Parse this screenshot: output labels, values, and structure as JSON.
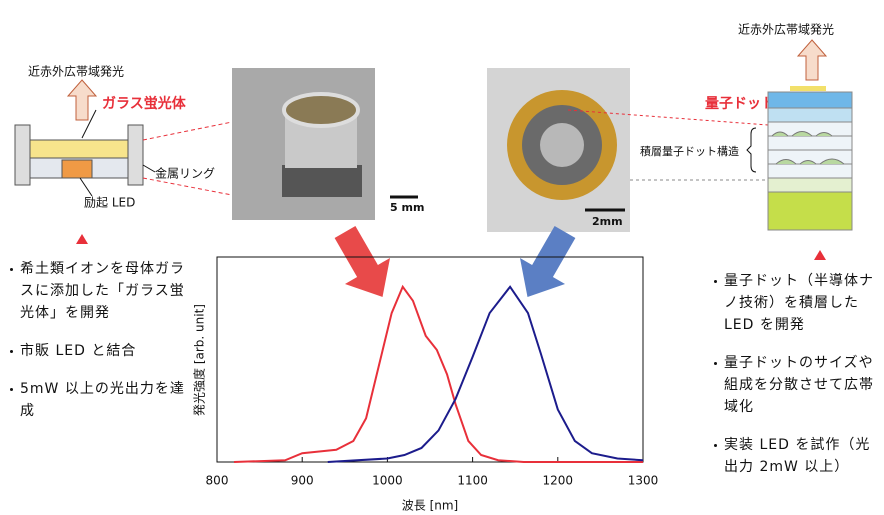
{
  "left_diagram": {
    "emission": "近赤外広帯域発光",
    "phosphor": "ガラス蛍光体",
    "ring": "金属リング",
    "led": "励起 LED"
  },
  "left_photo": {
    "scale": "5 mm"
  },
  "right_photo": {
    "scale": "2mm"
  },
  "right_diagram": {
    "emission": "近赤外広帯域発光",
    "dots": "量子ドット",
    "structure": "積層量子ドット構造"
  },
  "left_notes": [
    "希土類イオンを母体ガラスに添加した「ガラス蛍光体」を開発",
    "市販 LED と結合",
    "5mW 以上の光出力を達成"
  ],
  "right_notes": [
    "量子ドット（半導体ナノ技術）を積層した LED を開発",
    "量子ドットのサイズや組成を分散させて広帯域化",
    "実装 LED を試作（光出力 2mW 以上）"
  ],
  "chart_data": {
    "type": "line",
    "xlabel": "波長 [nm]",
    "ylabel": "発光強度 [arb. unit]",
    "xlim": [
      800,
      1300
    ],
    "xticks": [
      800,
      900,
      1000,
      1100,
      1200,
      1300
    ],
    "ylim": [
      0,
      1.17
    ],
    "series": [
      {
        "color": "#e8303a",
        "x": [
          820,
          880,
          900,
          920,
          940,
          960,
          975,
          990,
          1005,
          1018,
          1030,
          1045,
          1058,
          1070,
          1080,
          1095,
          1110,
          1130,
          1160,
          1300
        ],
        "values": [
          0,
          0.01,
          0.05,
          0.06,
          0.07,
          0.12,
          0.25,
          0.55,
          0.85,
          1.0,
          0.92,
          0.72,
          0.64,
          0.5,
          0.33,
          0.12,
          0.04,
          0.01,
          0,
          0
        ]
      },
      {
        "color": "#1c1c8c",
        "x": [
          930,
          1000,
          1020,
          1040,
          1060,
          1080,
          1100,
          1120,
          1144,
          1165,
          1180,
          1200,
          1220,
          1240,
          1270,
          1300
        ],
        "values": [
          0,
          0.02,
          0.04,
          0.08,
          0.18,
          0.36,
          0.6,
          0.85,
          1.0,
          0.85,
          0.62,
          0.3,
          0.12,
          0.05,
          0.02,
          0.01
        ]
      }
    ]
  }
}
